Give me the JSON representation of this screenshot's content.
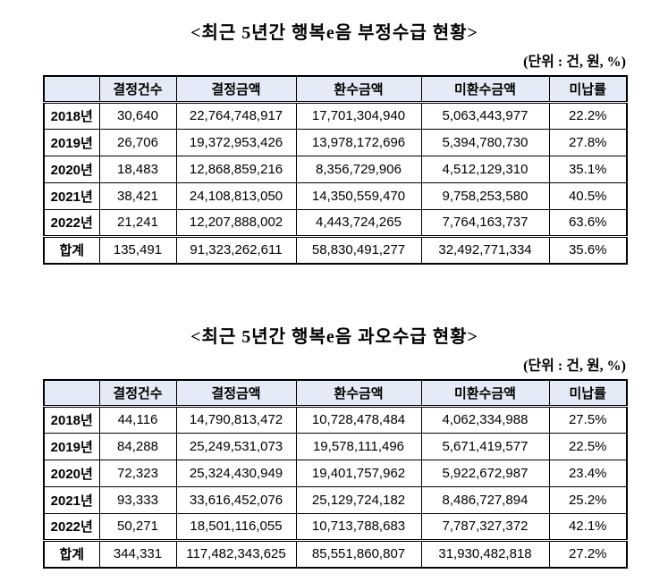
{
  "unit_label": "(단위 : 건, 원, %)",
  "colors": {
    "header_bg": "#E4EAF6",
    "border": "#000000",
    "text": "#000000",
    "page_bg": "#FFFFFF"
  },
  "tables": [
    {
      "title": "<최근 5년간 행복e음 부정수급 현황>",
      "columns": [
        "",
        "결정건수",
        "결정금액",
        "환수금액",
        "미환수금액",
        "미납률"
      ],
      "rows": [
        [
          "2018년",
          "30,640",
          "22,764,748,917",
          "17,701,304,940",
          "5,063,443,977",
          "22.2%"
        ],
        [
          "2019년",
          "26,706",
          "19,372,953,426",
          "13,978,172,696",
          "5,394,780,730",
          "27.8%"
        ],
        [
          "2020년",
          "18,483",
          "12,868,859,216",
          "8,356,729,906",
          "4,512,129,310",
          "35.1%"
        ],
        [
          "2021년",
          "38,421",
          "24,108,813,050",
          "14,350,559,470",
          "9,758,253,580",
          "40.5%"
        ],
        [
          "2022년",
          "21,241",
          "12,207,888,002",
          "4,443,724,265",
          "7,764,163,737",
          "63.6%"
        ]
      ],
      "total": [
        "합계",
        "135,491",
        "91,323,262,611",
        "58,830,491,277",
        "32,492,771,334",
        "35.6%"
      ]
    },
    {
      "title": "<최근 5년간 행복e음 과오수급 현황>",
      "columns": [
        "",
        "결정건수",
        "결정금액",
        "환수금액",
        "미환수금액",
        "미납률"
      ],
      "rows": [
        [
          "2018년",
          "44,116",
          "14,790,813,472",
          "10,728,478,484",
          "4,062,334,988",
          "27.5%"
        ],
        [
          "2019년",
          "84,288",
          "25,249,531,073",
          "19,578,111,496",
          "5,671,419,577",
          "22.5%"
        ],
        [
          "2020년",
          "72,323",
          "25,324,430,949",
          "19,401,757,962",
          "5,922,672,987",
          "23.4%"
        ],
        [
          "2021년",
          "93,333",
          "33,616,452,076",
          "25,129,724,182",
          "8,486,727,894",
          "25.2%"
        ],
        [
          "2022년",
          "50,271",
          "18,501,116,055",
          "10,713,788,683",
          "7,787,327,372",
          "42.1%"
        ]
      ],
      "total": [
        "합계",
        "344,331",
        "117,482,343,625",
        "85,551,860,807",
        "31,930,482,818",
        "27.2%"
      ]
    }
  ]
}
